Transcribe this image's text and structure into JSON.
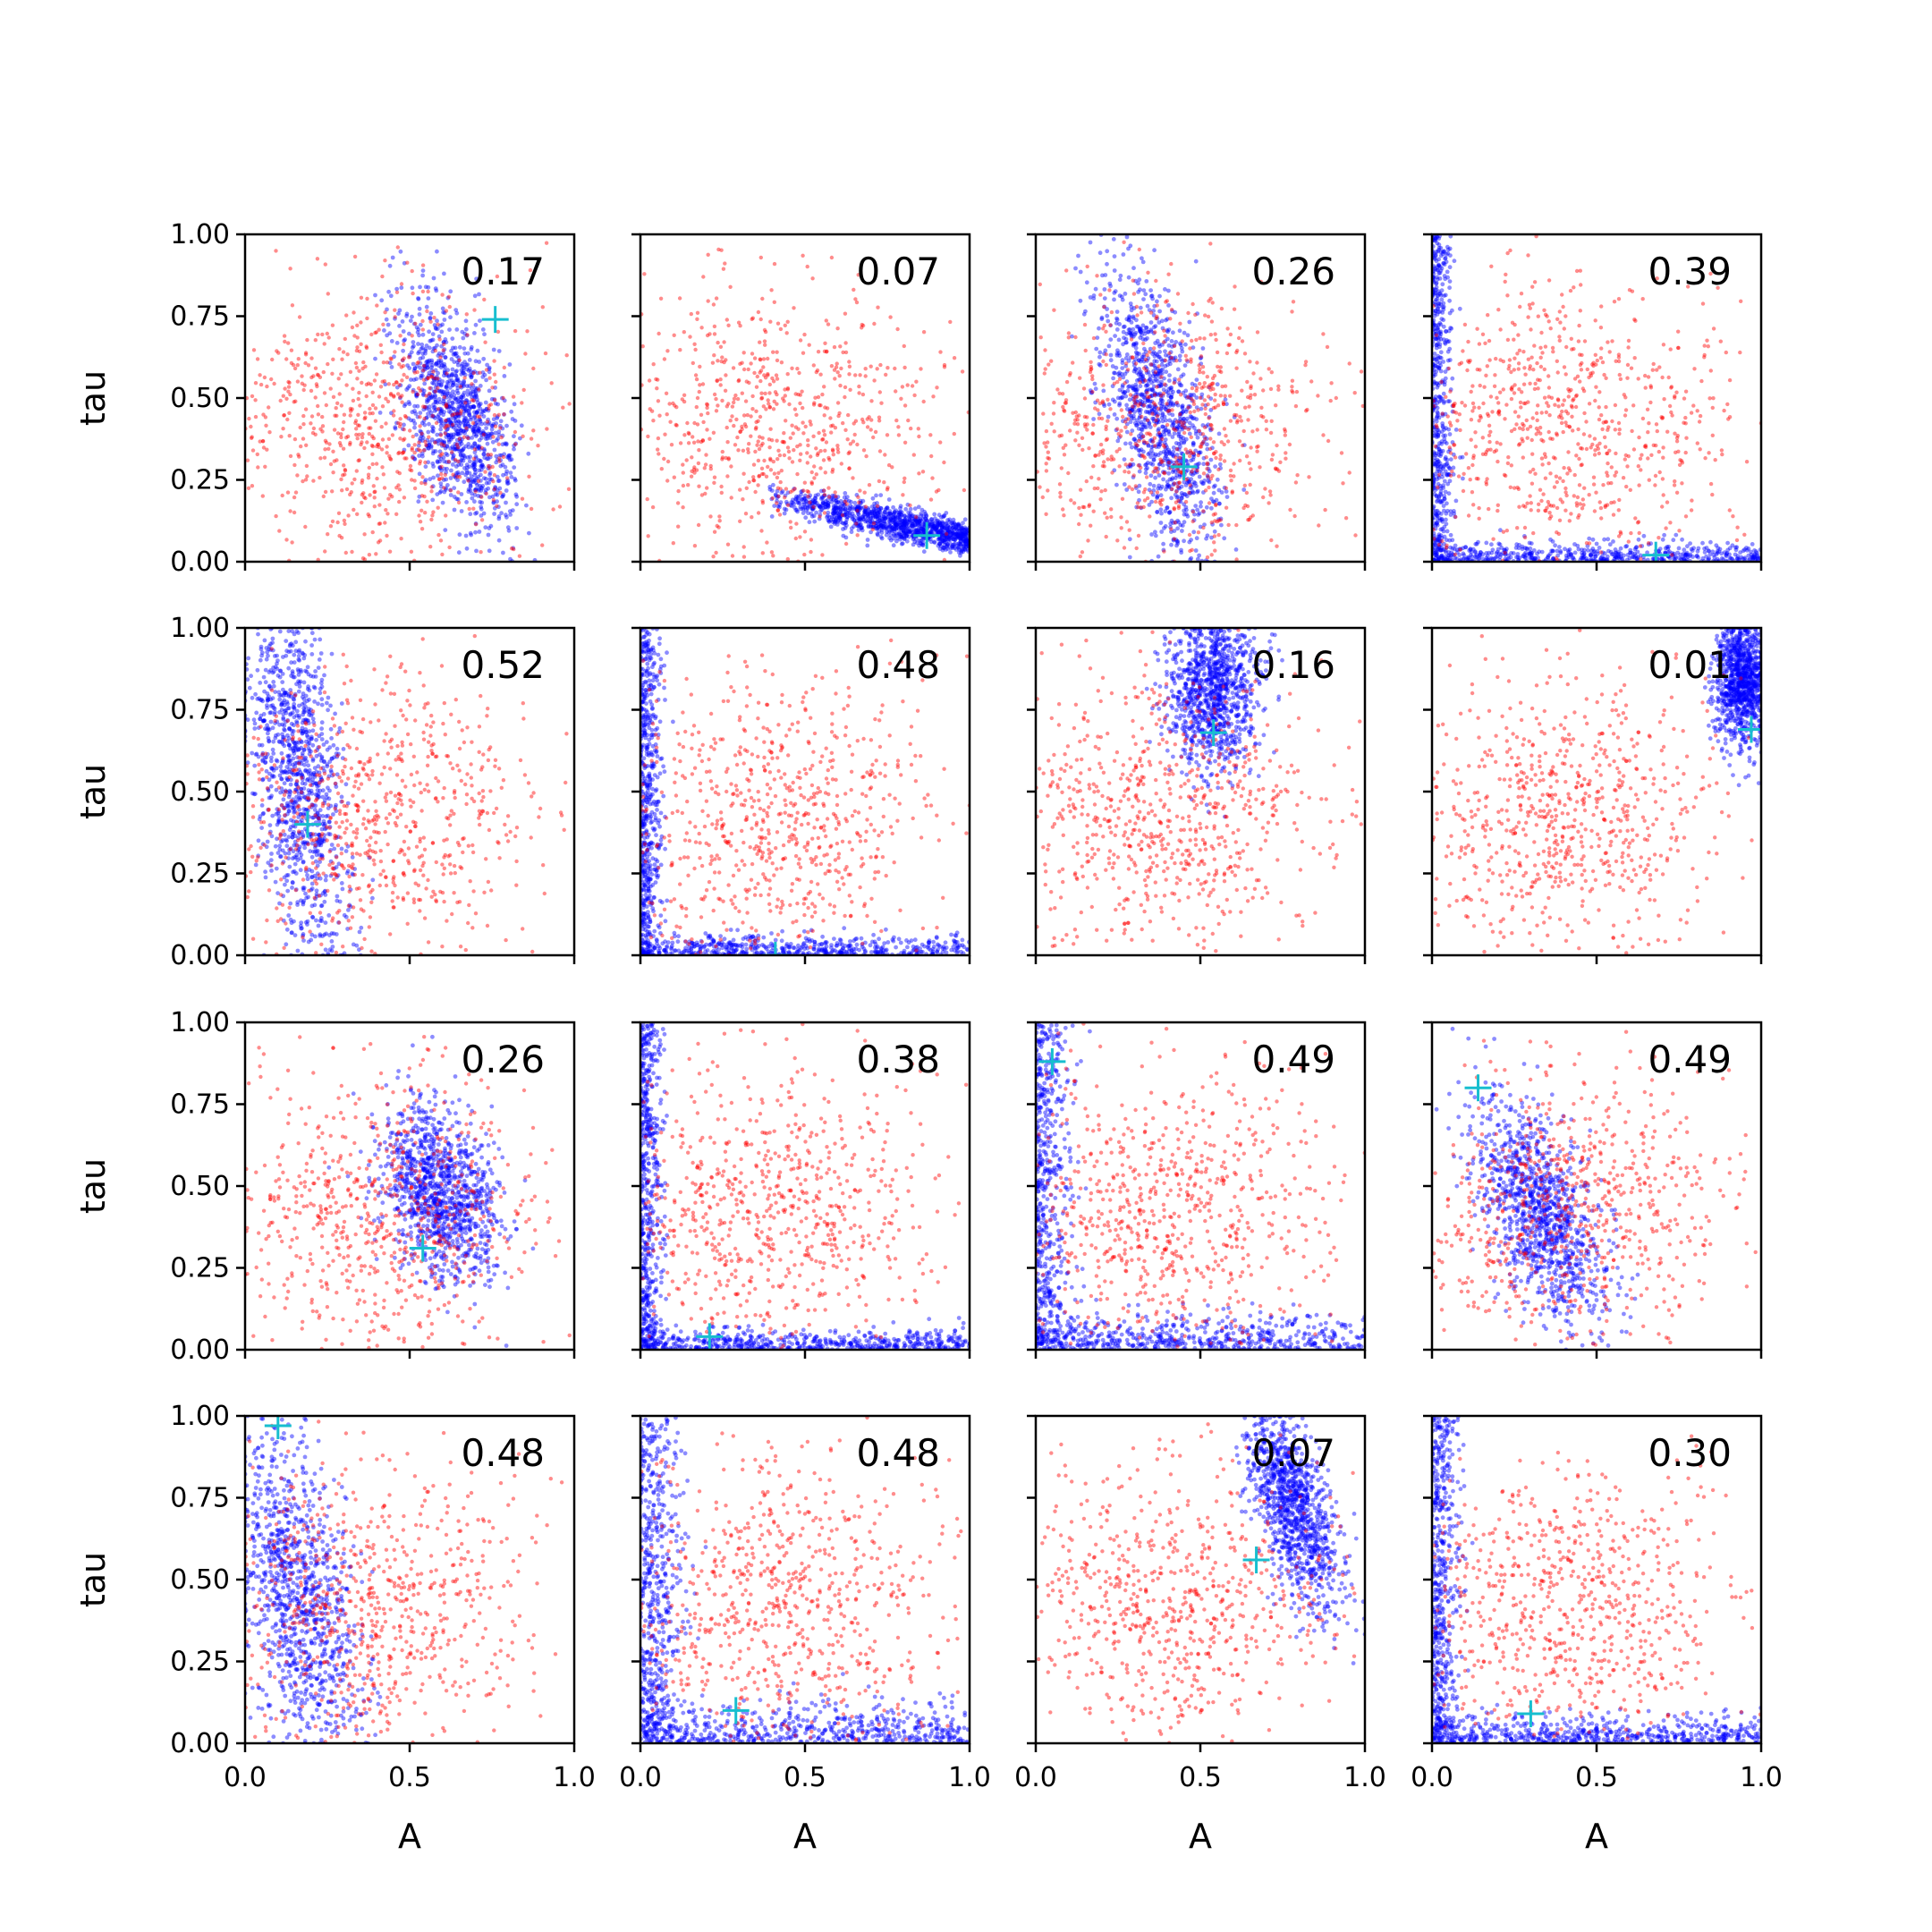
{
  "chart_data": {
    "type": "scatter",
    "grid": false,
    "rows": 4,
    "cols": 4,
    "xlabel": "A",
    "ylabel": "tau",
    "xlim": [
      0,
      1
    ],
    "ylim": [
      0,
      1
    ],
    "x_ticks": [
      "0.0",
      "0.5",
      "1.0"
    ],
    "y_ticks": [
      "0.00",
      "0.25",
      "0.50",
      "0.75",
      "1.00"
    ],
    "colors": {
      "prior": "#ff0000",
      "posterior": "#0000ff",
      "truth_marker": "#17becf",
      "axes": "#000000"
    },
    "panels": [
      {
        "annotation": "0.17",
        "truth": [
          0.76,
          0.74
        ],
        "posterior_cloud": {
          "cx": 0.64,
          "cy": 0.45,
          "sx": 0.09,
          "sy": 0.18,
          "corr": -0.55
        }
      },
      {
        "annotation": "0.07",
        "truth": [
          0.87,
          0.08
        ],
        "posterior_cloud": {
          "shape": "curve_low",
          "x_from": 0.38,
          "x_to": 1.0,
          "y_from": 0.2,
          "y_to": 0.07
        }
      },
      {
        "annotation": "0.26",
        "truth": [
          0.45,
          0.29
        ],
        "posterior_cloud": {
          "cx": 0.38,
          "cy": 0.45,
          "sx": 0.09,
          "sy": 0.22,
          "corr": -0.55
        }
      },
      {
        "annotation": "0.39",
        "truth": [
          0.68,
          0.02
        ],
        "posterior_cloud": {
          "shape": "L",
          "spread": 0.03
        }
      },
      {
        "annotation": "0.52",
        "truth": [
          0.19,
          0.4
        ],
        "posterior_cloud": {
          "cx": 0.16,
          "cy": 0.55,
          "sx": 0.07,
          "sy": 0.28,
          "corr": -0.4
        }
      },
      {
        "annotation": "0.48",
        "truth": [
          0.41,
          0.0
        ],
        "posterior_cloud": {
          "shape": "L",
          "spread": 0.03
        }
      },
      {
        "annotation": "0.16",
        "truth": [
          0.54,
          0.68
        ],
        "posterior_cloud": {
          "cx": 0.54,
          "cy": 0.82,
          "sx": 0.07,
          "sy": 0.13,
          "corr": 0.0
        }
      },
      {
        "annotation": "0.01",
        "truth": [
          0.97,
          0.69
        ],
        "posterior_cloud": {
          "cx": 0.94,
          "cy": 0.85,
          "sx": 0.04,
          "sy": 0.1,
          "corr": 0.0
        }
      },
      {
        "annotation": "0.26",
        "truth": [
          0.54,
          0.31
        ],
        "posterior_cloud": {
          "cx": 0.59,
          "cy": 0.48,
          "sx": 0.09,
          "sy": 0.14,
          "corr": -0.3
        }
      },
      {
        "annotation": "0.38",
        "truth": [
          0.21,
          0.04
        ],
        "posterior_cloud": {
          "shape": "L",
          "spread": 0.03
        }
      },
      {
        "annotation": "0.49",
        "truth": [
          0.05,
          0.88
        ],
        "posterior_cloud": {
          "shape": "L",
          "spread": 0.05
        }
      },
      {
        "annotation": "0.49",
        "truth": [
          0.14,
          0.8
        ],
        "posterior_cloud": {
          "cx": 0.33,
          "cy": 0.42,
          "sx": 0.1,
          "sy": 0.18,
          "corr": -0.6
        }
      },
      {
        "annotation": "0.48",
        "truth": [
          0.1,
          0.97
        ],
        "posterior_cloud": {
          "cx": 0.16,
          "cy": 0.45,
          "sx": 0.1,
          "sy": 0.28,
          "corr": -0.5
        }
      },
      {
        "annotation": "0.48",
        "truth": [
          0.29,
          0.1
        ],
        "posterior_cloud": {
          "shape": "L",
          "spread": 0.06
        }
      },
      {
        "annotation": "0.07",
        "truth": [
          0.67,
          0.56
        ],
        "posterior_cloud": {
          "cx": 0.78,
          "cy": 0.72,
          "sx": 0.07,
          "sy": 0.15,
          "corr": -0.6
        }
      },
      {
        "annotation": "0.30",
        "truth": [
          0.3,
          0.09
        ],
        "posterior_cloud": {
          "shape": "L",
          "spread": 0.04
        }
      }
    ]
  }
}
